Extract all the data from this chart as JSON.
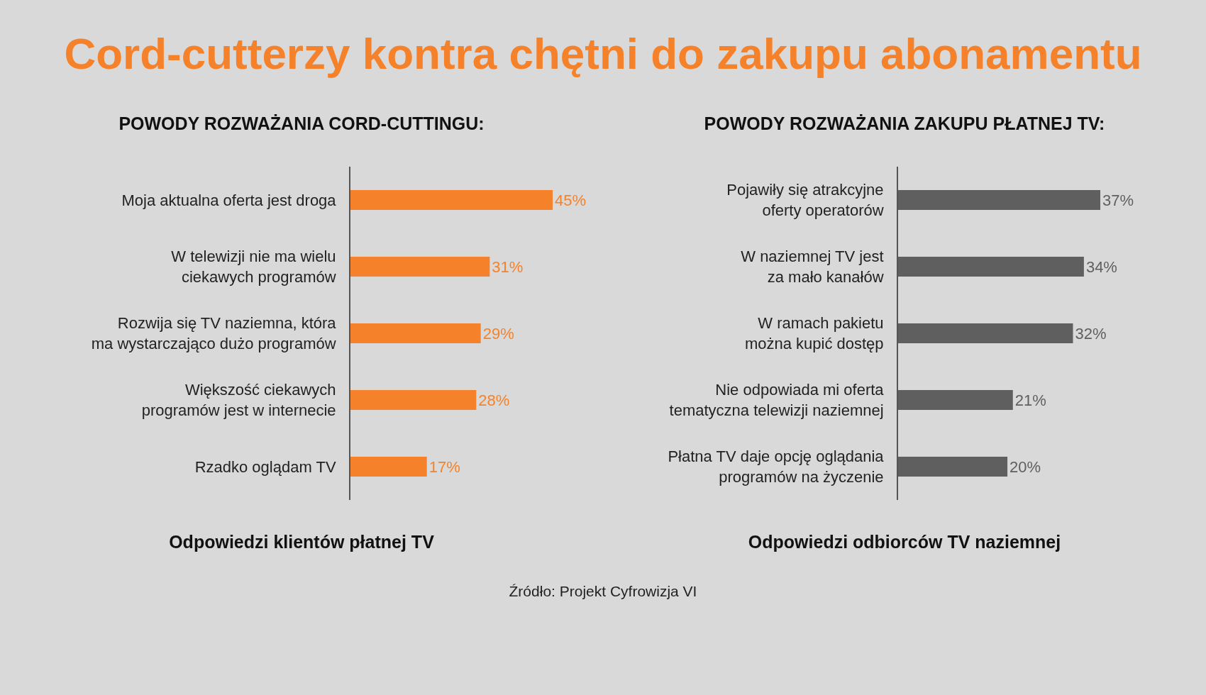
{
  "chart_data": [
    {
      "type": "bar",
      "orientation": "horizontal",
      "title": "Cord-cutterzy kontra chętni do zakupu abonamentu",
      "subtitle": "POWODY ROZWAŻANIA CORD-CUTTINGU:",
      "xlabel": "Odpowiedzi klientów płatnej TV",
      "categories": [
        "Moja aktualna oferta jest droga",
        "W telewizji nie ma wielu ciekawych programów",
        "Rozwija się TV naziemna, która ma wystarczająco dużo programów",
        "Większość ciekawych programów jest w internecie",
        "Rzadko oglądam TV"
      ],
      "values": [
        45,
        31,
        29,
        28,
        17
      ],
      "value_labels": [
        "45%",
        "31%",
        "29%",
        "28%",
        "17%"
      ],
      "color": "#f5822a",
      "tick_labels": "y",
      "grid": false,
      "legend": false,
      "annotations": [
        "Źródło: Projekt Cyfrowizja VI"
      ]
    },
    {
      "type": "bar",
      "orientation": "horizontal",
      "subtitle": "POWODY ROZWAŻANIA ZAKUPU PŁATNEJ TV:",
      "xlabel": "Odpowiedzi odbiorców TV naziemnej",
      "categories": [
        "Pojawiły się atrakcyjne oferty operatorów",
        "W naziemnej TV jest za mało kanałów",
        "W ramach pakietu można kupić dostęp",
        "Nie odpowiada mi oferta tematyczna telewizji naziemnej",
        "Płatna TV daje opcję oglądania programów na życzenie"
      ],
      "values": [
        37,
        34,
        32,
        21,
        20
      ],
      "value_labels": [
        "37%",
        "34%",
        "32%",
        "21%",
        "20%"
      ],
      "color": "#5f5f5f",
      "tick_labels": "y",
      "grid": false,
      "legend": false
    }
  ]
}
